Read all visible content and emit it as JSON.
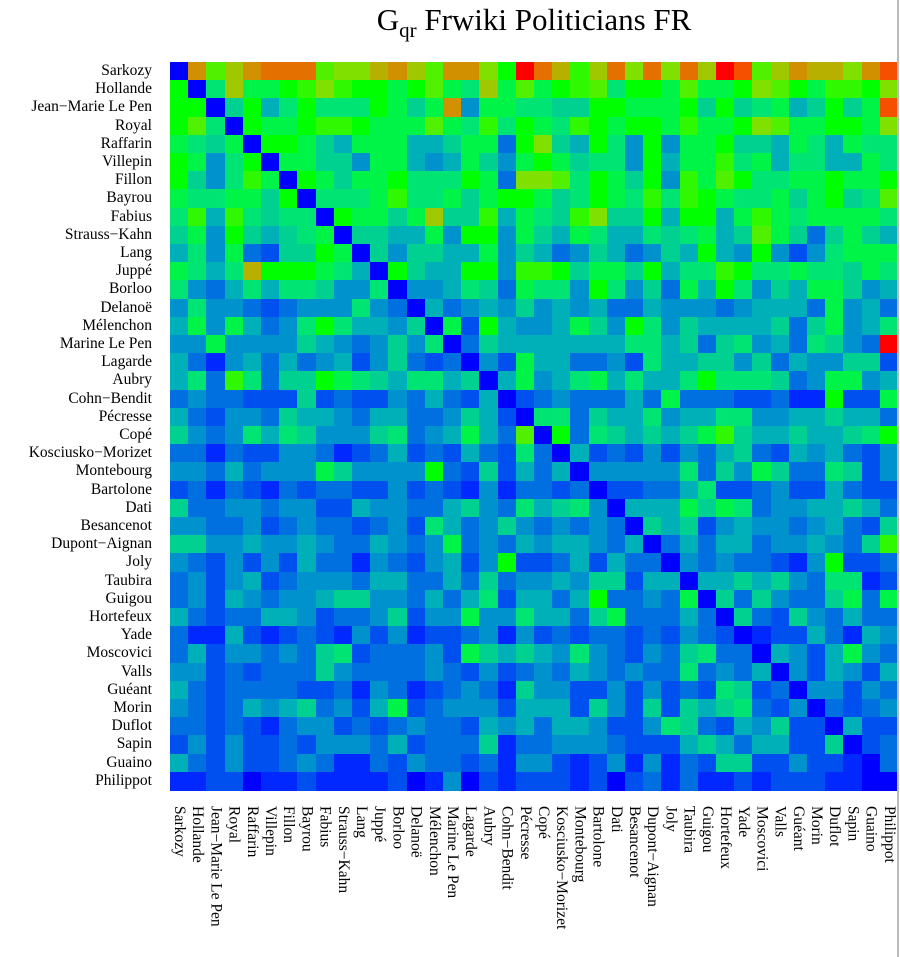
{
  "chart_data": {
    "type": "heatmap",
    "title_main": "G",
    "title_sub": "qr",
    "title_rest": " Frwiki Politicians FR",
    "labels": [
      "Sarkozy",
      "Hollande",
      "Jean−Marie Le Pen",
      "Royal",
      "Raffarin",
      "Villepin",
      "Fillon",
      "Bayrou",
      "Fabius",
      "Strauss−Kahn",
      "Lang",
      "Juppé",
      "Borloo",
      "Delanoë",
      "Mélenchon",
      "Marine Le Pen",
      "Lagarde",
      "Aubry",
      "Cohn−Bendit",
      "Pécresse",
      "Copé",
      "Kosciusko−Morizet",
      "Montebourg",
      "Bartolone",
      "Dati",
      "Besancenot",
      "Dupont−Aignan",
      "Joly",
      "Taubira",
      "Guigou",
      "Hortefeux",
      "Yade",
      "Moscovici",
      "Valls",
      "Guéant",
      "Morin",
      "Duflot",
      "Sapin",
      "Guaino",
      "Philippot"
    ],
    "value_scale": "color level 0 (low, blue) to 18 (high, red)",
    "colorscale": [
      "#0000ff",
      "#0028ff",
      "#0050f0",
      "#0070e0",
      "#0092cc",
      "#00b0b8",
      "#00d090",
      "#00e474",
      "#00f448",
      "#00ff00",
      "#30f800",
      "#50f000",
      "#80e000",
      "#a0c800",
      "#b8b000",
      "#d09000",
      "#e47000",
      "#f45000",
      "#ff0000"
    ],
    "values": [
      [
        0,
        15,
        11,
        13,
        15,
        16,
        16,
        16,
        11,
        12,
        12,
        14,
        15,
        13,
        11,
        15,
        15,
        12,
        9,
        18,
        16,
        14,
        10,
        13,
        16,
        12,
        16,
        12,
        16,
        13,
        18,
        17,
        11,
        13,
        15,
        14,
        14,
        12,
        15,
        17
      ],
      [
        9,
        0,
        7,
        13,
        8,
        8,
        9,
        10,
        12,
        10,
        9,
        9,
        8,
        9,
        11,
        8,
        7,
        13,
        8,
        11,
        8,
        9,
        10,
        11,
        7,
        9,
        9,
        8,
        11,
        8,
        8,
        9,
        12,
        11,
        9,
        8,
        10,
        10,
        9,
        12
      ],
      [
        9,
        9,
        0,
        6,
        9,
        5,
        7,
        9,
        7,
        7,
        7,
        9,
        8,
        6,
        8,
        15,
        4,
        8,
        8,
        7,
        7,
        6,
        6,
        9,
        9,
        8,
        8,
        8,
        9,
        6,
        9,
        6,
        7,
        8,
        5,
        6,
        9,
        6,
        8,
        17
      ],
      [
        9,
        11,
        7,
        0,
        9,
        8,
        8,
        9,
        10,
        10,
        9,
        8,
        8,
        8,
        11,
        8,
        7,
        10,
        7,
        9,
        8,
        7,
        10,
        9,
        8,
        9,
        9,
        8,
        10,
        8,
        8,
        9,
        12,
        11,
        8,
        8,
        9,
        9,
        8,
        12
      ],
      [
        8,
        7,
        6,
        8,
        0,
        9,
        9,
        8,
        6,
        5,
        8,
        8,
        8,
        5,
        5,
        6,
        8,
        8,
        3,
        9,
        12,
        6,
        5,
        9,
        7,
        4,
        9,
        4,
        8,
        8,
        9,
        6,
        6,
        5,
        8,
        7,
        5,
        8,
        7,
        7
      ],
      [
        9,
        8,
        4,
        7,
        9,
        0,
        8,
        8,
        6,
        6,
        4,
        8,
        8,
        5,
        4,
        5,
        8,
        6,
        4,
        8,
        9,
        8,
        6,
        7,
        7,
        4,
        9,
        5,
        8,
        8,
        10,
        7,
        8,
        5,
        7,
        7,
        5,
        5,
        8,
        7
      ],
      [
        9,
        6,
        4,
        7,
        10,
        8,
        0,
        9,
        8,
        6,
        8,
        8,
        9,
        7,
        7,
        7,
        9,
        8,
        3,
        12,
        12,
        11,
        7,
        9,
        8,
        6,
        9,
        4,
        10,
        8,
        11,
        9,
        7,
        7,
        8,
        8,
        9,
        8,
        8,
        9
      ],
      [
        8,
        7,
        7,
        8,
        8,
        6,
        9,
        0,
        7,
        7,
        7,
        8,
        10,
        7,
        7,
        8,
        6,
        8,
        9,
        9,
        8,
        6,
        7,
        9,
        8,
        7,
        10,
        7,
        10,
        9,
        8,
        7,
        7,
        8,
        6,
        8,
        9,
        6,
        7,
        11
      ],
      [
        7,
        10,
        5,
        10,
        7,
        6,
        7,
        7,
        0,
        9,
        8,
        8,
        6,
        8,
        13,
        6,
        6,
        10,
        5,
        8,
        7,
        6,
        10,
        12,
        6,
        6,
        9,
        5,
        9,
        9,
        5,
        8,
        10,
        8,
        7,
        8,
        8,
        8,
        8,
        7
      ],
      [
        6,
        8,
        4,
        9,
        6,
        5,
        6,
        7,
        8,
        0,
        6,
        6,
        5,
        5,
        8,
        4,
        9,
        9,
        4,
        8,
        6,
        5,
        8,
        7,
        5,
        5,
        7,
        6,
        7,
        8,
        5,
        6,
        11,
        8,
        6,
        3,
        6,
        8,
        6,
        5
      ],
      [
        5,
        7,
        4,
        8,
        3,
        2,
        6,
        6,
        9,
        8,
        0,
        6,
        4,
        6,
        6,
        5,
        5,
        8,
        4,
        6,
        5,
        3,
        4,
        6,
        5,
        3,
        4,
        6,
        5,
        9,
        5,
        4,
        9,
        4,
        2,
        4,
        7,
        8,
        8,
        8
      ],
      [
        8,
        7,
        5,
        7,
        14,
        9,
        9,
        9,
        8,
        7,
        5,
        0,
        9,
        6,
        5,
        5,
        9,
        9,
        4,
        10,
        10,
        9,
        6,
        8,
        8,
        6,
        9,
        5,
        7,
        7,
        10,
        9,
        7,
        7,
        8,
        7,
        7,
        6,
        8,
        7
      ],
      [
        7,
        4,
        3,
        5,
        7,
        5,
        7,
        7,
        6,
        4,
        4,
        7,
        0,
        4,
        4,
        5,
        7,
        6,
        3,
        8,
        7,
        7,
        4,
        9,
        7,
        4,
        6,
        3,
        8,
        5,
        9,
        7,
        4,
        6,
        5,
        8,
        8,
        6,
        4,
        5
      ],
      [
        4,
        7,
        4,
        4,
        3,
        2,
        3,
        4,
        4,
        4,
        7,
        4,
        3,
        0,
        5,
        3,
        4,
        5,
        4,
        6,
        4,
        5,
        4,
        5,
        3,
        3,
        5,
        4,
        4,
        4,
        3,
        4,
        5,
        5,
        5,
        3,
        8,
        4,
        5,
        3
      ],
      [
        5,
        8,
        4,
        8,
        5,
        3,
        4,
        7,
        9,
        7,
        5,
        5,
        4,
        6,
        0,
        8,
        2,
        9,
        5,
        4,
        4,
        5,
        8,
        6,
        4,
        9,
        7,
        4,
        6,
        5,
        5,
        5,
        5,
        6,
        3,
        6,
        8,
        4,
        5,
        7
      ],
      [
        4,
        4,
        8,
        4,
        4,
        4,
        4,
        6,
        5,
        4,
        3,
        4,
        6,
        4,
        7,
        0,
        3,
        6,
        5,
        5,
        5,
        5,
        5,
        5,
        5,
        7,
        7,
        5,
        6,
        3,
        6,
        7,
        4,
        5,
        3,
        7,
        6,
        4,
        3,
        18
      ],
      [
        5,
        3,
        1,
        4,
        5,
        3,
        5,
        3,
        4,
        5,
        2,
        4,
        6,
        3,
        2,
        3,
        0,
        4,
        2,
        8,
        5,
        5,
        3,
        3,
        4,
        2,
        7,
        5,
        5,
        6,
        6,
        4,
        6,
        3,
        5,
        4,
        4,
        6,
        6,
        2
      ],
      [
        5,
        7,
        3,
        10,
        7,
        3,
        6,
        6,
        9,
        8,
        7,
        6,
        5,
        7,
        7,
        5,
        6,
        0,
        5,
        8,
        4,
        5,
        7,
        8,
        5,
        7,
        5,
        5,
        7,
        9,
        7,
        7,
        7,
        6,
        3,
        4,
        8,
        8,
        4,
        5
      ],
      [
        3,
        4,
        3,
        3,
        2,
        2,
        2,
        6,
        2,
        3,
        2,
        2,
        4,
        3,
        5,
        3,
        2,
        5,
        0,
        2,
        3,
        4,
        3,
        3,
        3,
        5,
        3,
        8,
        3,
        3,
        3,
        2,
        2,
        3,
        1,
        1,
        9,
        2,
        2,
        8
      ],
      [
        5,
        3,
        2,
        4,
        4,
        3,
        6,
        5,
        5,
        4,
        3,
        5,
        5,
        3,
        3,
        4,
        6,
        5,
        2,
        0,
        7,
        7,
        3,
        6,
        5,
        5,
        7,
        4,
        5,
        5,
        7,
        7,
        4,
        4,
        5,
        5,
        6,
        5,
        5,
        3
      ],
      [
        6,
        4,
        3,
        4,
        7,
        5,
        7,
        6,
        4,
        4,
        4,
        6,
        7,
        3,
        4,
        5,
        8,
        5,
        3,
        11,
        0,
        9,
        3,
        7,
        6,
        5,
        6,
        5,
        6,
        8,
        10,
        6,
        5,
        5,
        6,
        5,
        5,
        6,
        7,
        9
      ],
      [
        3,
        3,
        1,
        3,
        2,
        2,
        4,
        4,
        3,
        1,
        2,
        3,
        5,
        2,
        3,
        2,
        5,
        3,
        2,
        7,
        3,
        0,
        5,
        2,
        3,
        2,
        4,
        2,
        4,
        3,
        5,
        6,
        3,
        2,
        5,
        4,
        5,
        3,
        2,
        4
      ],
      [
        4,
        4,
        3,
        5,
        3,
        4,
        4,
        4,
        8,
        6,
        4,
        4,
        4,
        4,
        9,
        3,
        2,
        6,
        2,
        5,
        3,
        5,
        0,
        4,
        4,
        4,
        4,
        4,
        7,
        3,
        6,
        4,
        8,
        6,
        3,
        3,
        7,
        6,
        2,
        4
      ],
      [
        2,
        3,
        1,
        3,
        2,
        1,
        3,
        2,
        3,
        3,
        2,
        2,
        4,
        2,
        3,
        2,
        1,
        4,
        1,
        3,
        3,
        2,
        3,
        0,
        2,
        2,
        3,
        3,
        5,
        7,
        2,
        2,
        3,
        4,
        2,
        2,
        5,
        3,
        2,
        2
      ],
      [
        6,
        3,
        3,
        4,
        4,
        3,
        4,
        4,
        2,
        2,
        5,
        4,
        4,
        3,
        3,
        5,
        6,
        4,
        3,
        7,
        5,
        6,
        7,
        4,
        0,
        5,
        5,
        5,
        8,
        6,
        8,
        7,
        3,
        4,
        4,
        5,
        5,
        6,
        5,
        3
      ],
      [
        4,
        4,
        3,
        3,
        4,
        2,
        3,
        4,
        3,
        3,
        2,
        3,
        4,
        2,
        7,
        5,
        3,
        4,
        6,
        4,
        3,
        4,
        3,
        4,
        3,
        0,
        6,
        5,
        6,
        2,
        4,
        5,
        4,
        4,
        3,
        4,
        5,
        3,
        2,
        6
      ],
      [
        6,
        6,
        4,
        4,
        5,
        4,
        4,
        5,
        4,
        3,
        3,
        5,
        4,
        3,
        4,
        8,
        3,
        4,
        3,
        5,
        4,
        5,
        5,
        4,
        3,
        5,
        0,
        3,
        5,
        3,
        5,
        5,
        3,
        4,
        4,
        5,
        4,
        3,
        6,
        10
      ],
      [
        4,
        3,
        2,
        4,
        2,
        4,
        2,
        5,
        3,
        3,
        1,
        4,
        3,
        2,
        4,
        5,
        2,
        4,
        9,
        2,
        2,
        3,
        5,
        2,
        5,
        3,
        3,
        0,
        4,
        3,
        4,
        3,
        3,
        2,
        1,
        4,
        9,
        2,
        2,
        3
      ],
      [
        3,
        4,
        2,
        4,
        5,
        2,
        3,
        4,
        4,
        4,
        3,
        5,
        5,
        3,
        3,
        5,
        3,
        6,
        3,
        4,
        4,
        5,
        4,
        6,
        6,
        2,
        5,
        5,
        0,
        5,
        5,
        6,
        5,
        6,
        4,
        3,
        7,
        7,
        1,
        2
      ],
      [
        3,
        4,
        2,
        5,
        4,
        3,
        4,
        4,
        5,
        6,
        6,
        4,
        4,
        3,
        5,
        3,
        5,
        7,
        2,
        5,
        5,
        3,
        5,
        9,
        3,
        3,
        4,
        3,
        8,
        0,
        6,
        3,
        6,
        4,
        3,
        3,
        6,
        8,
        3,
        8
      ],
      [
        5,
        3,
        2,
        3,
        3,
        5,
        5,
        4,
        2,
        3,
        3,
        4,
        6,
        2,
        4,
        4,
        8,
        4,
        4,
        7,
        5,
        5,
        3,
        6,
        8,
        3,
        3,
        3,
        5,
        3,
        0,
        6,
        3,
        2,
        6,
        4,
        3,
        5,
        3,
        3
      ],
      [
        3,
        1,
        1,
        5,
        2,
        1,
        2,
        3,
        2,
        1,
        4,
        2,
        4,
        1,
        2,
        2,
        3,
        4,
        1,
        4,
        2,
        3,
        2,
        3,
        3,
        2,
        3,
        2,
        4,
        3,
        2,
        0,
        1,
        2,
        2,
        5,
        3,
        1,
        5,
        4
      ],
      [
        3,
        5,
        2,
        4,
        4,
        3,
        4,
        3,
        6,
        7,
        2,
        3,
        3,
        3,
        4,
        2,
        8,
        6,
        5,
        6,
        5,
        4,
        7,
        4,
        3,
        2,
        4,
        3,
        6,
        7,
        3,
        3,
        0,
        5,
        4,
        2,
        5,
        8,
        4,
        3
      ],
      [
        4,
        4,
        2,
        3,
        2,
        3,
        3,
        3,
        6,
        4,
        3,
        3,
        3,
        3,
        4,
        3,
        2,
        4,
        2,
        3,
        4,
        3,
        5,
        4,
        3,
        4,
        3,
        3,
        7,
        3,
        4,
        3,
        5,
        0,
        4,
        2,
        5,
        4,
        2,
        5
      ],
      [
        5,
        3,
        2,
        3,
        3,
        3,
        3,
        2,
        2,
        3,
        1,
        4,
        3,
        1,
        2,
        3,
        4,
        3,
        1,
        6,
        4,
        4,
        2,
        2,
        4,
        2,
        4,
        2,
        3,
        2,
        7,
        6,
        2,
        3,
        0,
        4,
        4,
        2,
        4,
        3
      ],
      [
        4,
        3,
        2,
        3,
        5,
        4,
        5,
        6,
        3,
        4,
        2,
        5,
        8,
        2,
        3,
        4,
        4,
        4,
        2,
        5,
        5,
        5,
        2,
        6,
        4,
        2,
        6,
        2,
        6,
        5,
        6,
        7,
        3,
        2,
        4,
        0,
        3,
        2,
        3,
        4
      ],
      [
        3,
        3,
        2,
        3,
        2,
        1,
        3,
        4,
        4,
        2,
        3,
        2,
        3,
        4,
        3,
        3,
        2,
        5,
        4,
        5,
        3,
        5,
        5,
        4,
        2,
        2,
        4,
        7,
        6,
        3,
        2,
        5,
        4,
        6,
        2,
        2,
        0,
        5,
        2,
        2
      ],
      [
        2,
        4,
        2,
        4,
        2,
        2,
        3,
        2,
        4,
        4,
        4,
        3,
        5,
        2,
        3,
        3,
        3,
        6,
        1,
        3,
        3,
        4,
        4,
        4,
        3,
        2,
        2,
        2,
        5,
        6,
        5,
        3,
        5,
        5,
        2,
        2,
        6,
        0,
        2,
        3
      ],
      [
        5,
        3,
        2,
        4,
        2,
        2,
        3,
        4,
        3,
        1,
        1,
        3,
        2,
        4,
        3,
        3,
        2,
        3,
        1,
        4,
        4,
        2,
        1,
        2,
        4,
        1,
        4,
        1,
        3,
        2,
        6,
        6,
        2,
        2,
        4,
        2,
        2,
        1,
        0,
        3
      ],
      [
        1,
        1,
        2,
        2,
        0,
        1,
        1,
        2,
        1,
        1,
        1,
        1,
        2,
        0,
        1,
        4,
        0,
        2,
        1,
        2,
        2,
        2,
        1,
        2,
        0,
        2,
        3,
        1,
        3,
        1,
        1,
        2,
        1,
        2,
        2,
        2,
        1,
        1,
        0,
        0
      ]
    ]
  }
}
